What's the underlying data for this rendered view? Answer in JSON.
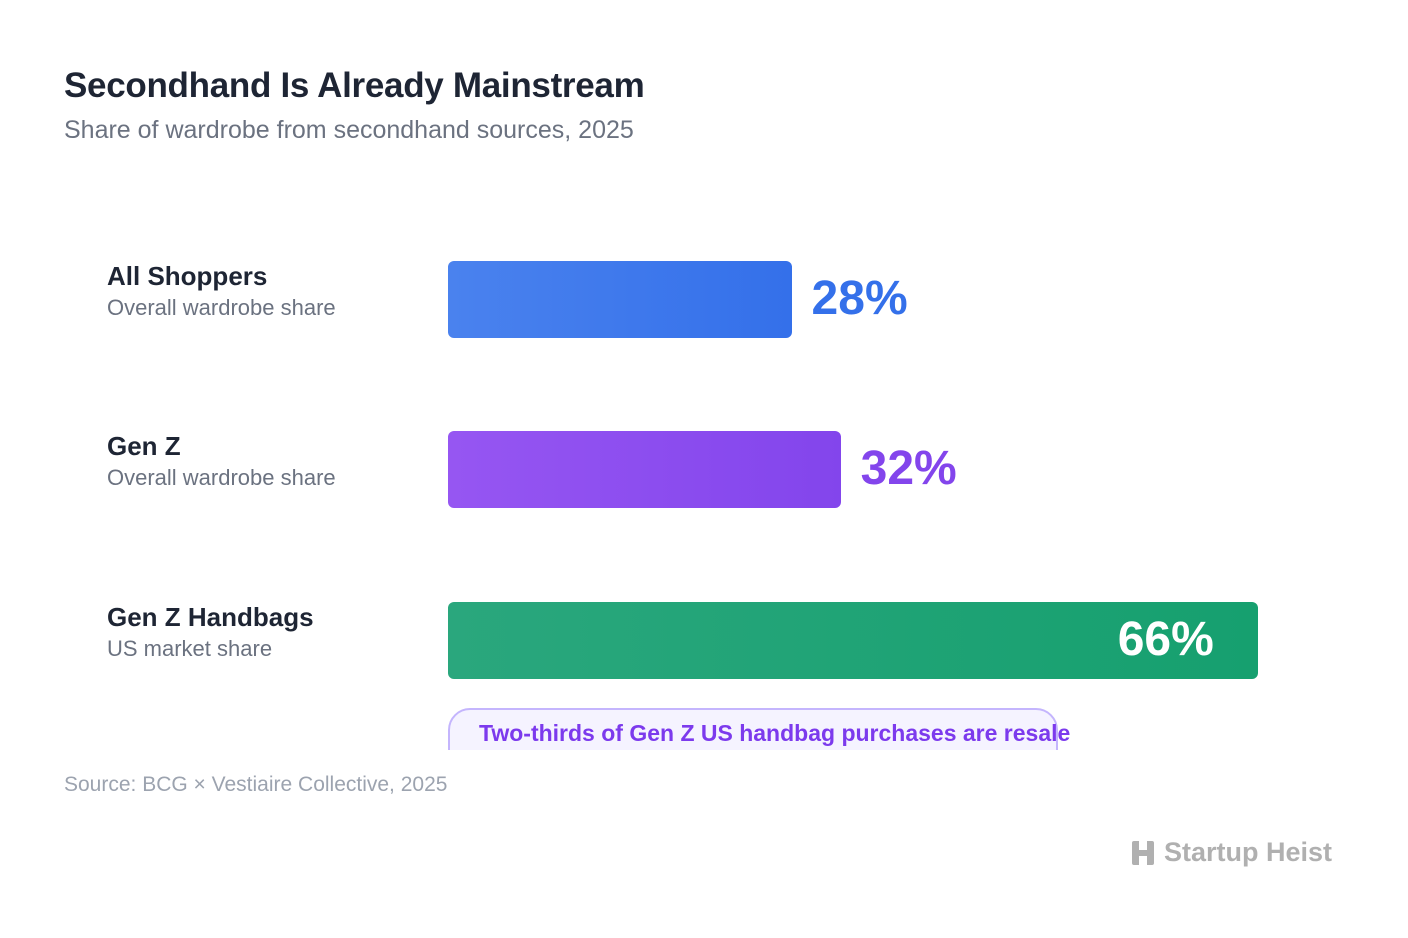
{
  "title": "Secondhand Is Already Mainstream",
  "subtitle": "Share of wardrobe from secondhand sources, 2025",
  "chart_data": {
    "type": "bar",
    "orientation": "horizontal",
    "categories": [
      "All Shoppers",
      "Gen Z",
      "Gen Z Handbags"
    ],
    "descriptions": [
      "Overall wardrobe share",
      "Overall wardrobe share",
      "US market share"
    ],
    "values": [
      28,
      32,
      66
    ],
    "value_labels": [
      "28%",
      "32%",
      "66%"
    ],
    "colors": [
      "#3470ea",
      "#8345ec",
      "#16a06f"
    ],
    "xlim": [
      0,
      100
    ],
    "grid": false,
    "annotation": "Two-thirds of Gen Z US handbag purchases are resale"
  },
  "source": "Source: BCG × Vestiaire Collective, 2025",
  "logo": {
    "text": "Startup Heist",
    "icon": "h-block-icon"
  }
}
